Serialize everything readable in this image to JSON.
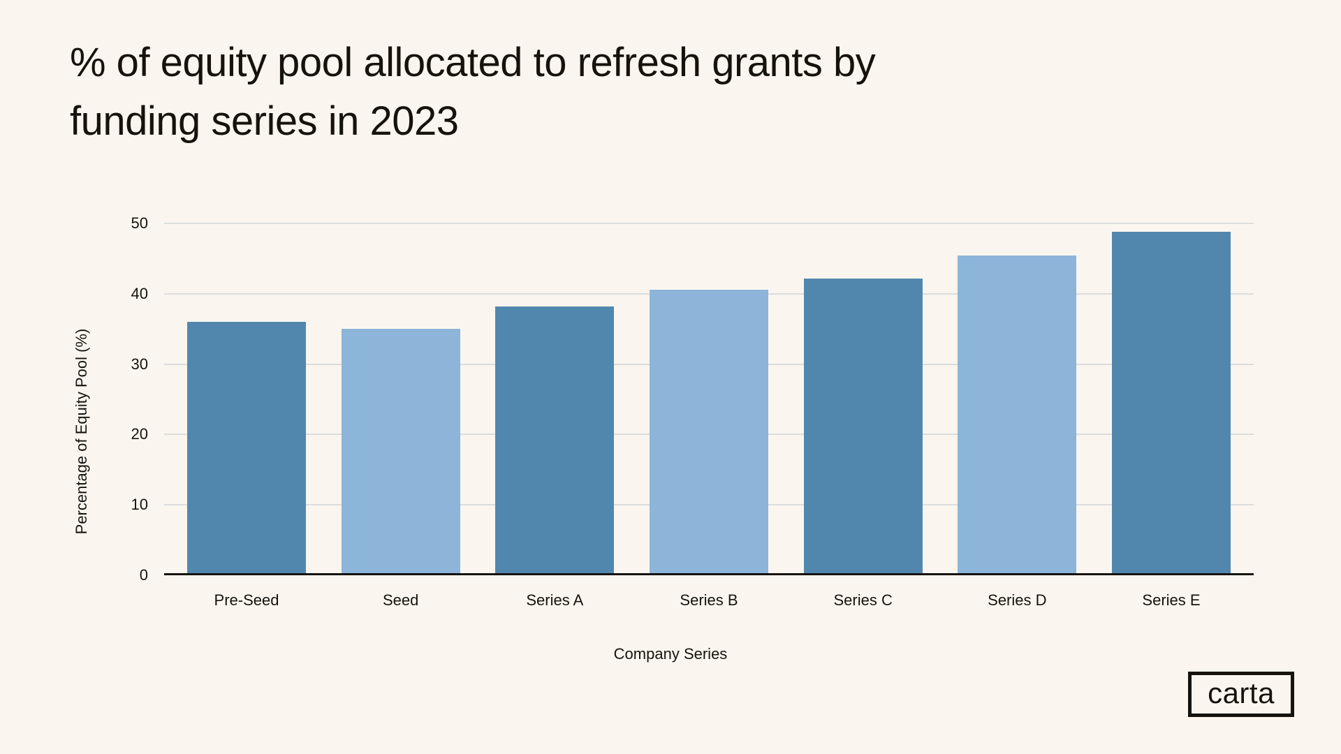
{
  "page": {
    "background_color": "#faf6ef",
    "text_color": "#16120e"
  },
  "title": {
    "lines": [
      "% of equity pool allocated to refresh grants by",
      "funding series in 2023"
    ]
  },
  "chart_data": {
    "type": "bar",
    "title": "% of equity pool allocated to refresh grants by funding series in 2023",
    "categories": [
      "Pre-Seed",
      "Seed",
      "Series A",
      "Series B",
      "Series C",
      "Series D",
      "Series E"
    ],
    "values": [
      36,
      35,
      38.2,
      40.6,
      42.2,
      45.4,
      48.8
    ],
    "bar_colors": [
      "#5287ad",
      "#8db4d9",
      "#5287ad",
      "#8db4d9",
      "#5287ad",
      "#8db4d9",
      "#5287ad"
    ],
    "xlabel": "Company Series",
    "ylabel": "Percentage of Equity Pool (%)",
    "ylim": [
      0,
      50
    ],
    "yticks": [
      0,
      10,
      20,
      30,
      40,
      50
    ],
    "grid": true,
    "gridline_color": "#dcdcdc",
    "axis_color": "#16120e",
    "legend": "none"
  },
  "logo": {
    "label": "carta"
  }
}
